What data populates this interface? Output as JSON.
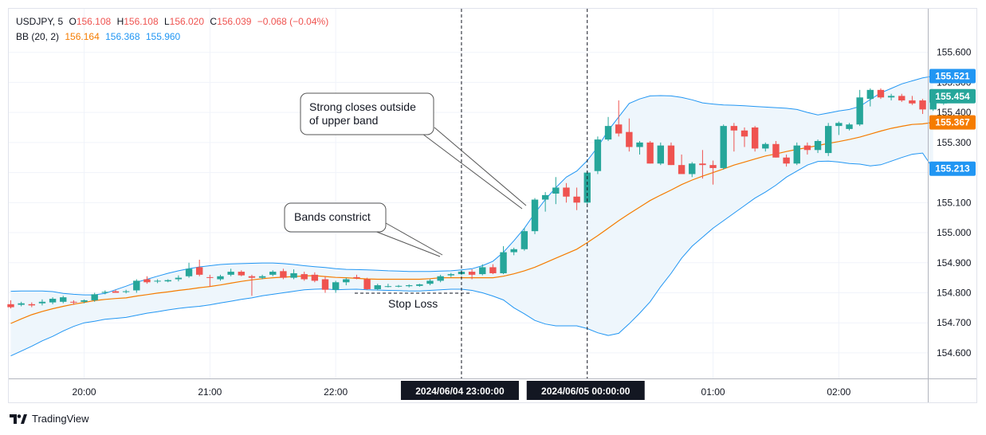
{
  "legend": {
    "symbol": "USDJPY, 5",
    "o_label": "O",
    "o": "156.108",
    "h_label": "H",
    "h": "156.108",
    "l_label": "L",
    "l": "156.020",
    "c_label": "C",
    "c": "156.039",
    "change": "−0.068 (−0.04%)",
    "bb_label": "BB (20, 2)",
    "bb_basis": "156.164",
    "bb_upper": "156.368",
    "bb_lower": "155.960"
  },
  "branding": "TradingView",
  "colors": {
    "up": "#26a69a",
    "down": "#ef5350",
    "basis": "#f57c00",
    "bands": "#2196f3",
    "band_fill": "#eef6fc",
    "label_bg": "#131722"
  },
  "annotations": {
    "strong_closes_line1": "Strong closes outside",
    "strong_closes_line2": "of upper band",
    "bands_constrict": "Bands constrict",
    "stop_loss": "Stop Loss"
  },
  "chart_data": {
    "type": "candlestick",
    "ylim": [
      154.515,
      155.745
    ],
    "y_ticks": [
      "155.600",
      "155.500",
      "155.400",
      "155.300",
      "155.200",
      "155.100",
      "155.000",
      "154.900",
      "154.800",
      "154.700",
      "154.600"
    ],
    "x_labels": [
      {
        "label": "20:00",
        "index": 7
      },
      {
        "label": "21:00",
        "index": 19
      },
      {
        "label": "22:00",
        "index": 31
      },
      {
        "label": "01:00",
        "index": 67
      },
      {
        "label": "02:00",
        "index": 79
      }
    ],
    "crosshair_labels": [
      {
        "label": "2024/06/04    23:00:00",
        "index": 43
      },
      {
        "label": "2024/06/05    00:00:00",
        "index": 55
      }
    ],
    "price_labels": [
      {
        "value": 155.521,
        "text": "155.521",
        "color": "#2196f3"
      },
      {
        "value": 155.454,
        "text": "155.454",
        "color": "#26a69a"
      },
      {
        "value": 155.367,
        "text": "155.367",
        "color": "#f57c00"
      },
      {
        "value": 155.213,
        "text": "155.213",
        "color": "#2196f3"
      }
    ],
    "candles": [
      [
        154.762,
        154.775,
        154.748,
        154.752
      ],
      [
        154.76,
        154.77,
        154.755,
        154.765
      ],
      [
        154.762,
        154.768,
        154.752,
        154.758
      ],
      [
        154.765,
        154.778,
        154.758,
        154.77
      ],
      [
        154.768,
        154.785,
        154.762,
        154.78
      ],
      [
        154.77,
        154.79,
        154.765,
        154.785
      ],
      [
        154.77,
        154.775,
        154.76,
        154.768
      ],
      [
        154.77,
        154.778,
        154.765,
        154.775
      ],
      [
        154.775,
        154.8,
        154.77,
        154.795
      ],
      [
        154.8,
        154.808,
        154.795,
        154.803
      ],
      [
        154.805,
        154.81,
        154.8,
        154.8
      ],
      [
        154.803,
        154.81,
        154.798,
        154.805
      ],
      [
        154.808,
        154.845,
        154.8,
        154.84
      ],
      [
        154.845,
        154.855,
        154.83,
        154.835
      ],
      [
        154.838,
        154.845,
        154.832,
        154.84
      ],
      [
        154.838,
        154.845,
        154.835,
        154.842
      ],
      [
        154.845,
        154.858,
        154.838,
        154.85
      ],
      [
        154.855,
        154.9,
        154.85,
        154.88
      ],
      [
        154.885,
        154.91,
        154.855,
        154.86
      ],
      [
        154.852,
        154.86,
        154.82,
        154.85
      ],
      [
        154.845,
        154.86,
        154.84,
        154.855
      ],
      [
        154.86,
        154.88,
        154.855,
        154.87
      ],
      [
        154.87,
        154.875,
        154.855,
        154.858
      ],
      [
        154.855,
        154.86,
        154.79,
        154.85
      ],
      [
        154.85,
        154.86,
        154.845,
        154.855
      ],
      [
        154.86,
        154.875,
        154.855,
        154.87
      ],
      [
        154.872,
        154.88,
        154.845,
        154.85
      ],
      [
        154.85,
        154.878,
        154.845,
        154.865
      ],
      [
        154.862,
        154.87,
        154.84,
        154.845
      ],
      [
        154.86,
        154.868,
        154.835,
        154.84
      ],
      [
        154.845,
        154.855,
        154.8,
        154.81
      ],
      [
        154.81,
        154.84,
        154.8,
        154.835
      ],
      [
        154.835,
        154.85,
        154.825,
        154.845
      ],
      [
        154.852,
        154.86,
        154.845,
        154.848
      ],
      [
        154.845,
        154.85,
        154.81,
        154.812
      ],
      [
        154.812,
        154.83,
        154.808,
        154.825
      ],
      [
        154.82,
        154.83,
        154.818,
        154.822
      ],
      [
        154.822,
        154.826,
        154.818,
        154.823
      ],
      [
        154.822,
        154.828,
        154.818,
        154.825
      ],
      [
        154.823,
        154.83,
        154.82,
        154.828
      ],
      [
        154.83,
        154.845,
        154.825,
        154.84
      ],
      [
        154.84,
        154.86,
        154.835,
        154.855
      ],
      [
        154.858,
        154.866,
        154.852,
        154.862
      ],
      [
        154.862,
        154.875,
        154.858,
        154.87
      ],
      [
        154.87,
        154.878,
        154.845,
        154.86
      ],
      [
        154.862,
        154.895,
        154.858,
        154.885
      ],
      [
        154.885,
        154.895,
        154.862,
        154.865
      ],
      [
        154.865,
        154.955,
        154.862,
        154.935
      ],
      [
        154.935,
        154.95,
        154.925,
        154.945
      ],
      [
        154.945,
        155.015,
        154.94,
        155.005
      ],
      [
        155.005,
        155.115,
        154.995,
        155.11
      ],
      [
        155.11,
        155.135,
        155.07,
        155.125
      ],
      [
        155.13,
        155.185,
        155.095,
        155.15
      ],
      [
        155.15,
        155.165,
        155.1,
        155.12
      ],
      [
        155.12,
        155.15,
        155.075,
        155.1
      ],
      [
        155.1,
        155.205,
        155.095,
        155.2
      ],
      [
        155.205,
        155.32,
        155.195,
        155.31
      ],
      [
        155.31,
        155.385,
        155.305,
        155.355
      ],
      [
        155.36,
        155.44,
        155.32,
        155.33
      ],
      [
        155.335,
        155.38,
        155.27,
        155.285
      ],
      [
        155.285,
        155.305,
        155.26,
        155.3
      ],
      [
        155.3,
        155.305,
        155.23,
        155.23
      ],
      [
        155.23,
        155.3,
        155.225,
        155.29
      ],
      [
        155.29,
        155.3,
        155.225,
        155.225
      ],
      [
        155.225,
        155.26,
        155.2,
        155.195
      ],
      [
        155.195,
        155.235,
        155.185,
        155.23
      ],
      [
        155.23,
        155.275,
        155.18,
        155.225
      ],
      [
        155.225,
        155.24,
        155.16,
        155.215
      ],
      [
        155.215,
        155.36,
        155.21,
        155.355
      ],
      [
        155.355,
        155.365,
        155.27,
        155.34
      ],
      [
        155.34,
        155.35,
        155.285,
        155.32
      ],
      [
        155.35,
        155.355,
        155.27,
        155.28
      ],
      [
        155.28,
        155.3,
        155.27,
        155.295
      ],
      [
        155.295,
        155.305,
        155.25,
        155.25
      ],
      [
        155.25,
        155.26,
        155.22,
        155.23
      ],
      [
        155.23,
        155.3,
        155.225,
        155.29
      ],
      [
        155.29,
        155.3,
        155.26,
        155.275
      ],
      [
        155.275,
        155.31,
        155.265,
        155.305
      ],
      [
        155.265,
        155.365,
        155.255,
        155.355
      ],
      [
        155.355,
        155.37,
        155.325,
        155.365
      ],
      [
        155.345,
        155.365,
        155.34,
        155.36
      ],
      [
        155.36,
        155.475,
        155.355,
        155.45
      ],
      [
        155.445,
        155.48,
        155.42,
        155.475
      ],
      [
        155.475,
        155.48,
        155.445,
        155.45
      ],
      [
        155.45,
        155.462,
        155.44,
        155.455
      ],
      [
        155.455,
        155.462,
        155.435,
        155.44
      ],
      [
        155.44,
        155.455,
        155.425,
        155.43
      ],
      [
        155.44,
        155.445,
        155.395,
        155.41
      ],
      [
        155.41,
        155.44,
        155.405,
        155.435
      ],
      [
        155.43,
        155.465,
        155.425,
        155.454
      ]
    ],
    "bb_basis": [
      154.698,
      154.713,
      154.727,
      154.738,
      154.747,
      154.755,
      154.762,
      154.768,
      154.774,
      154.778,
      154.781,
      154.783,
      154.789,
      154.794,
      154.799,
      154.803,
      154.808,
      154.812,
      154.817,
      154.821,
      154.826,
      154.832,
      154.838,
      154.843,
      154.847,
      154.85,
      154.852,
      154.854,
      154.856,
      154.857,
      154.854,
      154.851,
      154.85,
      154.848,
      154.846,
      154.845,
      154.845,
      154.845,
      154.845,
      154.845,
      154.847,
      154.85,
      154.85,
      154.85,
      154.85,
      154.85,
      154.85,
      154.855,
      154.863,
      154.873,
      154.885,
      154.9,
      154.915,
      154.93,
      154.945,
      154.967,
      154.99,
      155.015,
      155.04,
      155.063,
      155.085,
      155.107,
      155.125,
      155.142,
      155.16,
      155.175,
      155.188,
      155.2,
      155.212,
      155.225,
      155.235,
      155.245,
      155.255,
      155.262,
      155.27,
      155.277,
      155.283,
      155.29,
      155.297,
      155.303,
      155.31,
      155.318,
      155.328,
      155.338,
      155.347,
      155.354,
      155.36,
      155.362,
      155.367
    ],
    "bb_upper": [
      154.805,
      154.806,
      154.806,
      154.806,
      154.804,
      154.798,
      154.795,
      154.793,
      154.793,
      154.798,
      154.81,
      154.822,
      154.835,
      154.845,
      154.855,
      154.865,
      154.873,
      154.88,
      154.886,
      154.89,
      154.894,
      154.896,
      154.897,
      154.898,
      154.899,
      154.899,
      154.897,
      154.894,
      154.89,
      154.887,
      154.884,
      154.88,
      154.878,
      154.877,
      154.876,
      154.875,
      154.873,
      154.872,
      154.871,
      154.871,
      154.871,
      154.872,
      154.873,
      154.876,
      154.88,
      154.89,
      154.905,
      154.935,
      154.973,
      155.015,
      155.065,
      155.11,
      155.15,
      155.185,
      155.205,
      155.24,
      155.285,
      155.34,
      155.385,
      155.43,
      155.445,
      155.455,
      155.456,
      155.455,
      155.45,
      155.442,
      155.432,
      155.428,
      155.425,
      155.424,
      155.422,
      155.42,
      155.418,
      155.416,
      155.414,
      155.41,
      155.4,
      155.392,
      155.398,
      155.405,
      155.41,
      155.42,
      155.443,
      155.465,
      155.48,
      155.495,
      155.505,
      155.515,
      155.521
    ],
    "bb_lower": [
      154.59,
      154.606,
      154.622,
      154.64,
      154.655,
      154.673,
      154.688,
      154.7,
      154.705,
      154.712,
      154.715,
      154.718,
      154.725,
      154.732,
      154.737,
      154.743,
      154.748,
      154.752,
      154.755,
      154.76,
      154.766,
      154.772,
      154.778,
      154.783,
      154.79,
      154.795,
      154.8,
      154.805,
      154.81,
      154.812,
      154.813,
      154.81,
      154.811,
      154.812,
      154.81,
      154.809,
      154.808,
      154.807,
      154.806,
      154.806,
      154.808,
      154.81,
      154.812,
      154.812,
      154.808,
      154.8,
      154.789,
      154.776,
      154.75,
      154.73,
      154.708,
      154.696,
      154.69,
      154.69,
      154.69,
      154.681,
      154.667,
      154.658,
      154.665,
      154.697,
      154.732,
      154.77,
      154.82,
      154.865,
      154.915,
      154.955,
      154.985,
      155.015,
      155.04,
      155.065,
      155.09,
      155.115,
      155.135,
      155.158,
      155.185,
      155.205,
      155.225,
      155.237,
      155.238,
      155.235,
      155.23,
      155.228,
      155.222,
      155.226,
      155.238,
      155.25,
      155.261,
      155.265,
      155.213
    ]
  }
}
